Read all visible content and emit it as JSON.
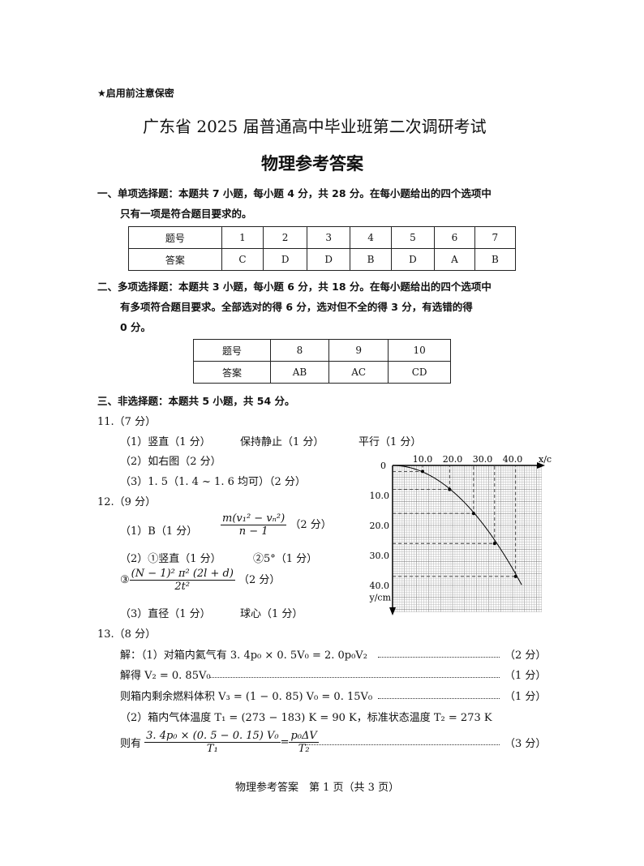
{
  "confidential": "★启用前注意保密",
  "title": "广东省 2025 届普通高中毕业班第二次调研考试",
  "subtitle": "物理参考答案",
  "s1": {
    "line1": "一、单项选择题：本题共 7 小题，每小题 4 分，共 28 分。在每小题给出的四个选项中",
    "line2": "只有一项是符合题目要求的。",
    "table": {
      "row_labels": [
        "题号",
        "答案"
      ],
      "numbers": [
        "1",
        "2",
        "3",
        "4",
        "5",
        "6",
        "7"
      ],
      "answers": [
        "C",
        "D",
        "D",
        "B",
        "D",
        "A",
        "B"
      ]
    }
  },
  "s2": {
    "line1": "二、多项选择题：本题共 3 小题，每小题 6 分，共 18 分。在每小题给出的四个选项中",
    "line2": "有多项符合题目要求。全部选对的得 6 分，选对但不全的得 3 分，有选错的得",
    "line3": "0 分。",
    "table": {
      "row_labels": [
        "题号",
        "答案"
      ],
      "numbers": [
        "8",
        "9",
        "10"
      ],
      "answers": [
        "AB",
        "AC",
        "CD"
      ]
    }
  },
  "s3": {
    "line1": "三、非选择题：本题共 5 小题，共 54 分。"
  },
  "q11": {
    "head": "11.（7 分）",
    "l1a": "（1）竖直（1 分）",
    "l1b": "保持静止（1 分）",
    "l1c": "平行（1 分）",
    "l2": "（2）如右图（2 分）",
    "l3": "（3）1. 5（1. 4 ~ 1. 6 均可）（2 分）"
  },
  "q12": {
    "head": "12.（9 分）",
    "l1a": "（1）B（1 分）",
    "f1n": "m(v₁² − vₙ²)",
    "f1d": "n − 1",
    "l1b": "（2 分）",
    "l2a": "（2）①竖直（1 分）",
    "l2b": "②5°（1 分）",
    "c3": "③",
    "f2n": "(N − 1)² π² (2l + d)",
    "f2d": "2t²",
    "l3b": "（2 分）",
    "l4a": "（3）直径（1 分）",
    "l4b": "球心（1 分）"
  },
  "q13": {
    "head": "13.（8 分）",
    "l1": "解：（1）对箱内氦气有 3. 4p₀ × 0. 5V₀ = 2. 0p₀V₂",
    "s1": "（2 分）",
    "l2": "解得 V₂ = 0. 85V₀",
    "s2": "（1 分）",
    "l3": "则箱内剩余燃料体积 V₃ = (1 − 0. 85) V₀ = 0. 15V₀",
    "s3": "（1 分）",
    "l4": "（2）箱内气体温度 T₁ = (273 − 183) K = 90 K，标准状态温度 T₂ = 273 K",
    "l5": "则有",
    "f3n": "3. 4p₀ × (0. 5 − 0. 15) V₀",
    "f3d": "T₁",
    "eq": "=",
    "f4n": "p₀ΔV",
    "f4d": "T₂",
    "s5": "（3 分）"
  },
  "footer": "物理参考答案　第 1 页（共 3 页）",
  "chart_data": {
    "type": "scatter",
    "xlabel": "x/cm",
    "ylabel": "y/cm",
    "x_ticks": [
      "10.0",
      "20.0",
      "30.0",
      "40.0"
    ],
    "y_ticks": [
      "10.0",
      "20.0",
      "30.0",
      "40.0"
    ],
    "origin_label": "0",
    "xlim": [
      0,
      50
    ],
    "ylim": [
      0,
      48
    ],
    "y_axis": "downward",
    "grid": true,
    "points": [
      {
        "x": 10,
        "y": 2
      },
      {
        "x": 19,
        "y": 8
      },
      {
        "x": 27,
        "y": 16
      },
      {
        "x": 34,
        "y": 26
      },
      {
        "x": 41,
        "y": 37
      }
    ]
  }
}
